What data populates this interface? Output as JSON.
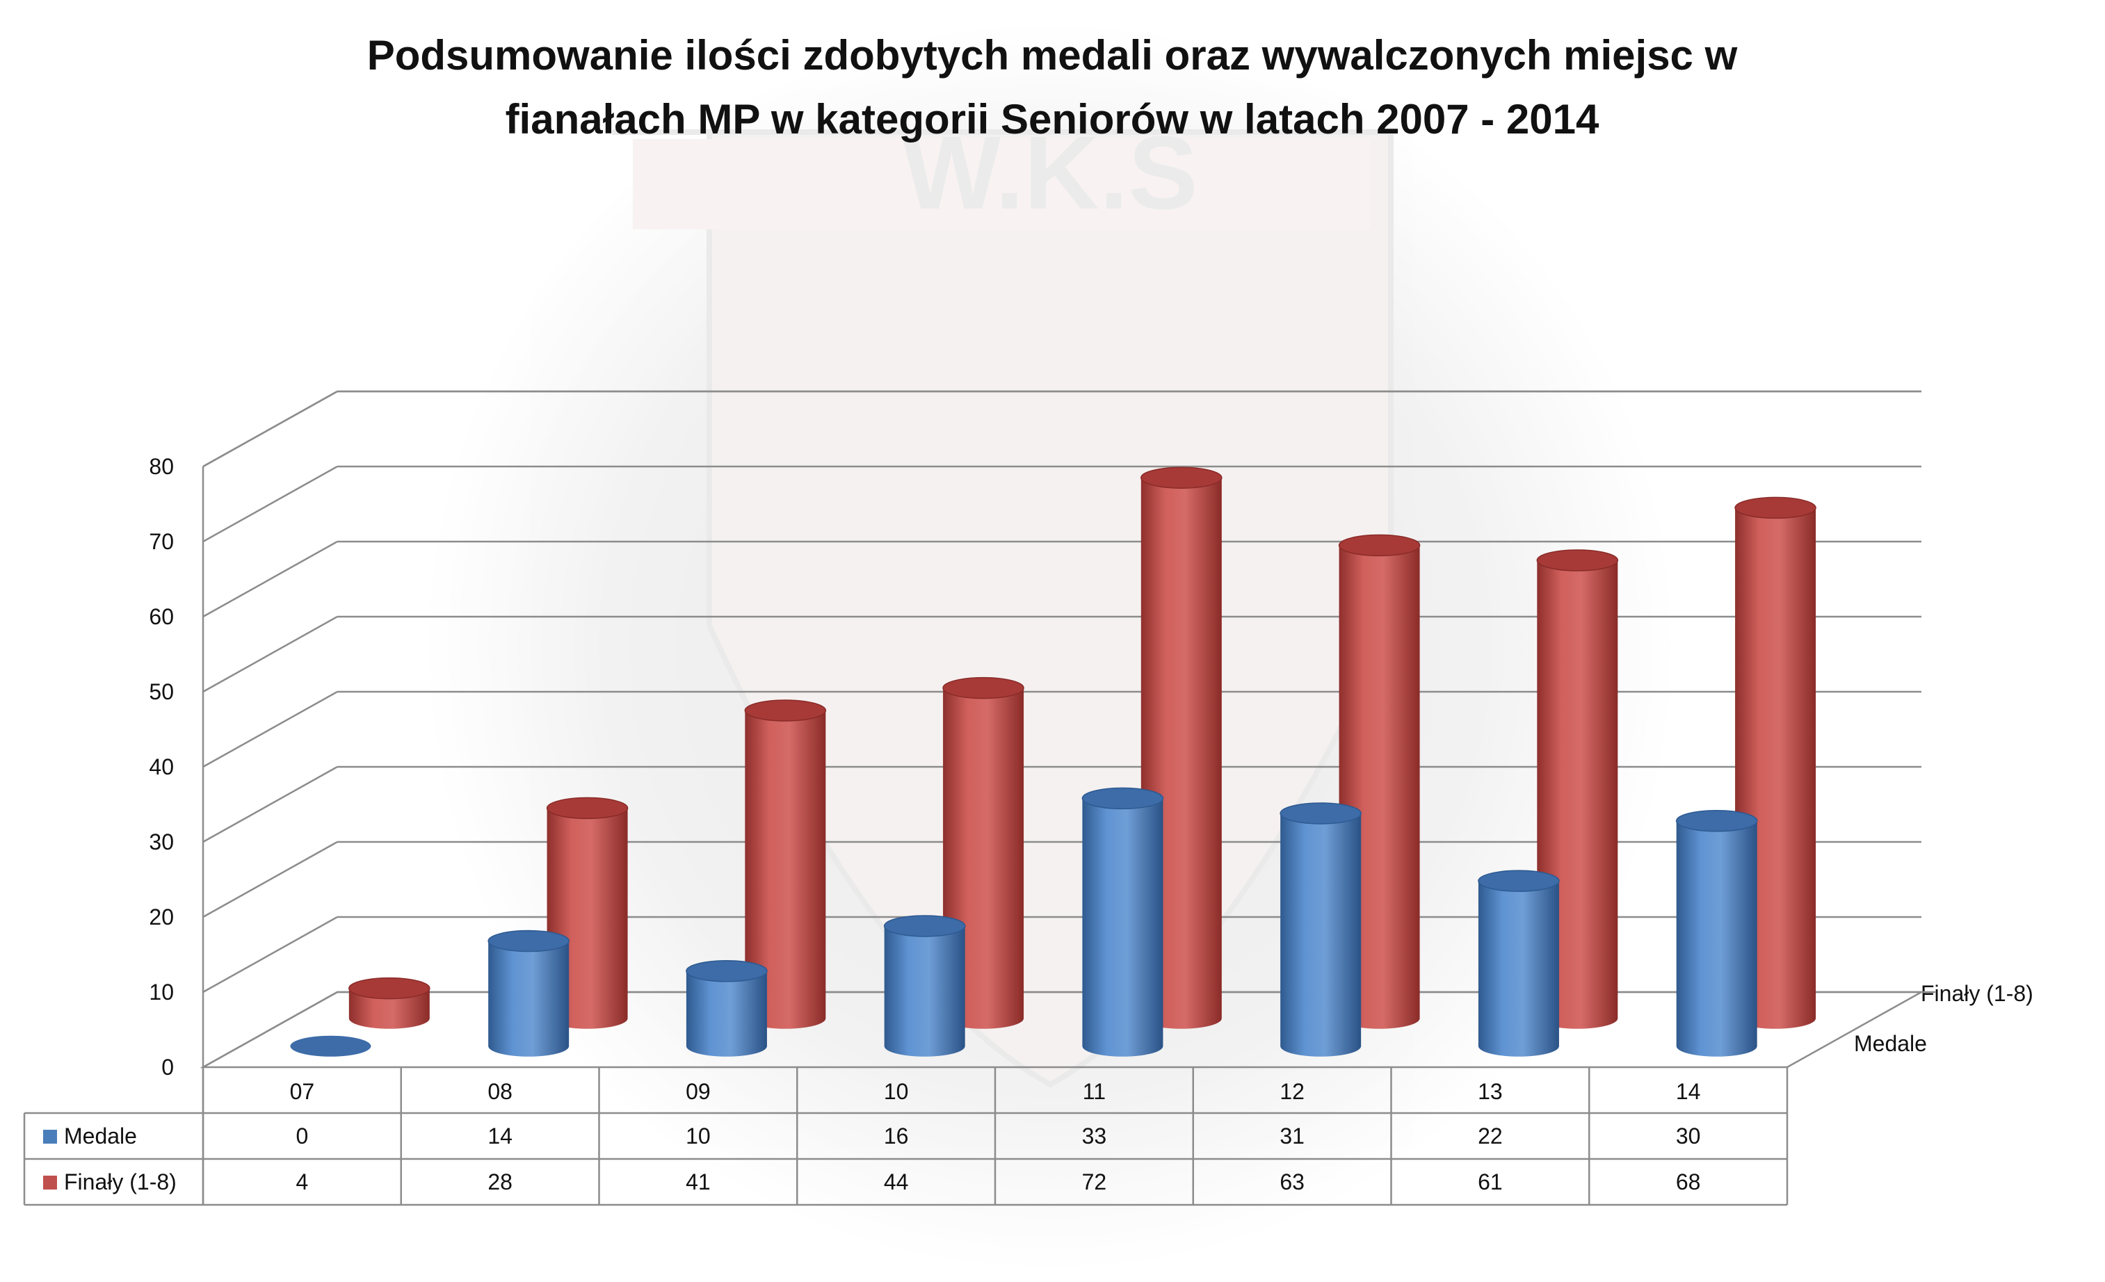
{
  "chart_data": {
    "type": "bar",
    "title": "Podsumowanie ilości zdobytych medali oraz wywalczonych miejsc w fianałach MP w kategorii Seniorów w latach 2007 - 2014",
    "title_lines": [
      "Podsumowanie ilości zdobytych medali oraz wywalczonych miejsc w",
      "fianałach MP w kategorii Seniorów w latach 2007 - 2014"
    ],
    "categories": [
      "07",
      "08",
      "09",
      "10",
      "11",
      "12",
      "13",
      "14"
    ],
    "series": [
      {
        "name": "Medale",
        "values": [
          0,
          14,
          10,
          16,
          33,
          31,
          22,
          30
        ],
        "color": "#4a7ebb"
      },
      {
        "name": "Finały (1-8)",
        "values": [
          4,
          28,
          41,
          44,
          72,
          63,
          61,
          68
        ],
        "color": "#c0504d"
      }
    ],
    "yticks": [
      0,
      10,
      20,
      30,
      40,
      50,
      60,
      70,
      80
    ],
    "ylim": [
      0,
      80
    ],
    "style": "3d-cylinder",
    "grid": true,
    "data_table": true,
    "watermark": "W.K.S"
  }
}
